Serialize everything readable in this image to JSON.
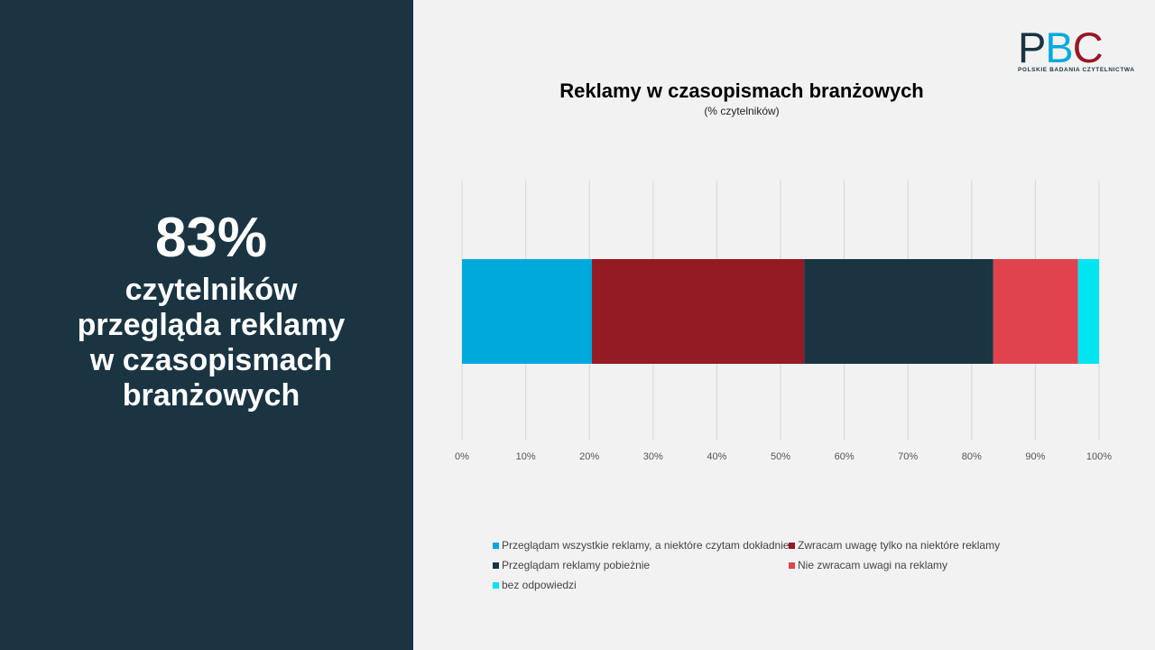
{
  "headline": {
    "stat": "83%",
    "lines": [
      "czytelników",
      "przegląda reklamy",
      "w czasopismach",
      "branżowych"
    ]
  },
  "logo": {
    "letters": [
      "P",
      "B",
      "C"
    ],
    "letter_colors": [
      "#1a3442",
      "#00a9dc",
      "#941a24"
    ],
    "tagline": "POLSKIE BADANIA CZYTELNICTWA"
  },
  "chart_data": {
    "type": "stacked-bar-horizontal-100",
    "title": "Reklamy w czasopismach branżowych",
    "subtitle": "(% czytelników)",
    "x_ticks": [
      "0%",
      "10%",
      "20%",
      "30%",
      "40%",
      "50%",
      "60%",
      "70%",
      "80%",
      "90%",
      "100%"
    ],
    "xlim": [
      0,
      100
    ],
    "grid": true,
    "legend_position": "bottom",
    "series": [
      {
        "name": "Przeglądam wszystkie reklamy, a niektóre czytam dokładnie",
        "value": 20.4,
        "color": "#00a9dc"
      },
      {
        "name": "Zwracam uwagę tylko na niektóre reklamy",
        "value": 33.3,
        "color": "#941a24"
      },
      {
        "name": "Przeglądam reklamy pobieżnie",
        "value": 29.7,
        "color": "#1a3442"
      },
      {
        "name": "Nie zwracam uwagi na reklamy",
        "value": 13.3,
        "color": "#e0434d"
      },
      {
        "name": "bez odpowiedzi",
        "value": 3.3,
        "color": "#00e5f0"
      }
    ]
  }
}
